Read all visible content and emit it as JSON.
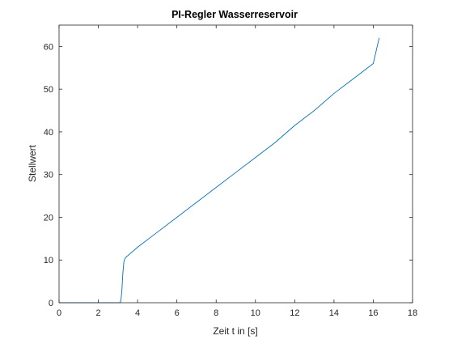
{
  "chart_data": {
    "type": "line",
    "title": "PI-Regler Wasserreservoir",
    "xlabel": "Zeit t in [s]",
    "ylabel": "Stellwert",
    "xlim": [
      0,
      18
    ],
    "ylim": [
      0,
      65
    ],
    "xticks": [
      "0",
      "2",
      "4",
      "6",
      "8",
      "10",
      "12",
      "14",
      "16",
      "18"
    ],
    "yticks": [
      "0",
      "10",
      "20",
      "30",
      "40",
      "50",
      "60"
    ],
    "grid": false,
    "legend": "none",
    "series": [
      {
        "color": "#0072bd",
        "x": [
          0,
          3.1,
          3.15,
          3.2,
          3.25,
          3.3,
          3.35,
          3.4,
          3.45,
          3.5,
          4,
          5,
          6,
          7,
          8,
          9,
          10,
          11,
          12,
          13,
          14,
          15,
          16,
          16.3
        ],
        "y": [
          0,
          0,
          0.5,
          3,
          7,
          9.5,
          10.3,
          10.6,
          10.9,
          11,
          13,
          16.5,
          20,
          23.5,
          27,
          30.5,
          34,
          37.5,
          41.5,
          45,
          49,
          52.5,
          56,
          62
        ]
      }
    ]
  }
}
